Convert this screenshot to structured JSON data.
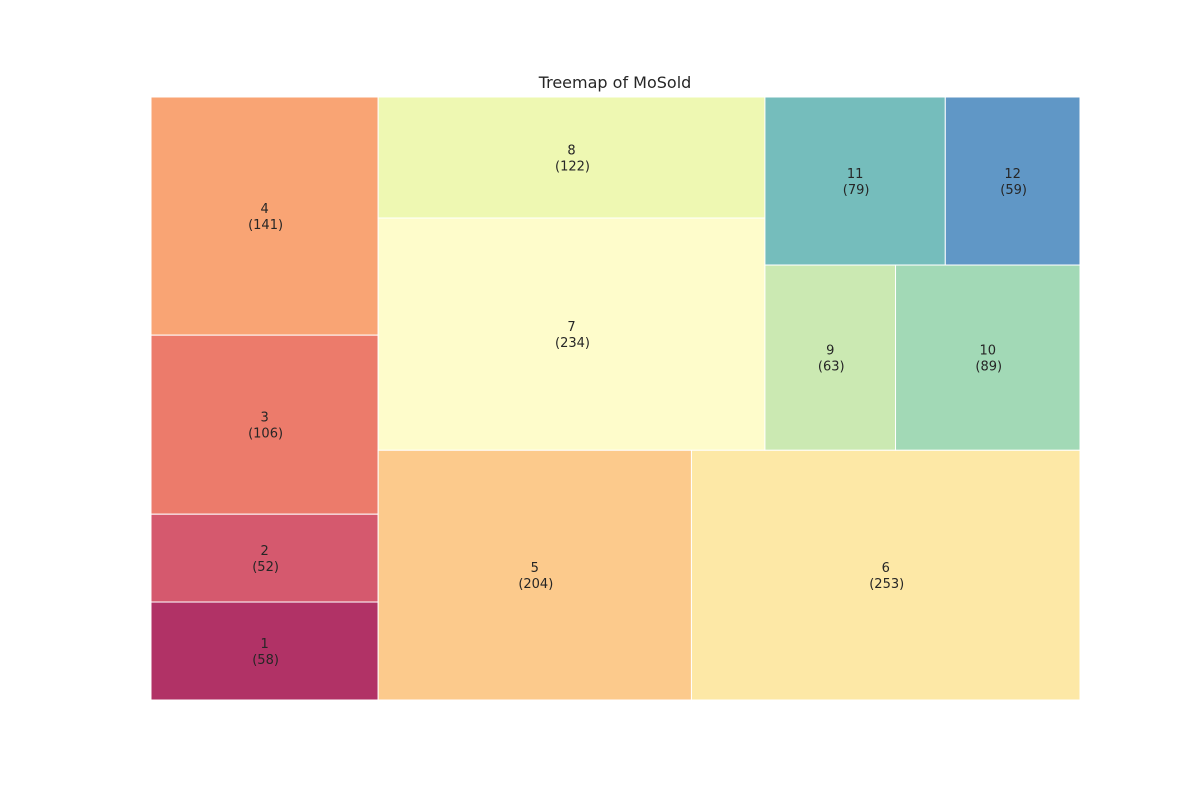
{
  "chart_data": {
    "type": "treemap",
    "title": "Treemap of MoSold",
    "categories": [
      "1",
      "2",
      "3",
      "4",
      "5",
      "6",
      "7",
      "8",
      "9",
      "10",
      "11",
      "12"
    ],
    "values": [
      58,
      52,
      106,
      141,
      204,
      253,
      234,
      122,
      63,
      89,
      79,
      59
    ],
    "colors": {
      "1": "#b13266",
      "2": "#d5596e",
      "3": "#ec7b6b",
      "4": "#f9a474",
      "5": "#fcca8c",
      "6": "#fde8a6",
      "7": "#fefccb",
      "8": "#eef8b2",
      "9": "#cbe9b2",
      "10": "#a2d9b6",
      "11": "#75bdbc",
      "12": "#6097c6"
    },
    "grid": false,
    "legend": "none"
  }
}
